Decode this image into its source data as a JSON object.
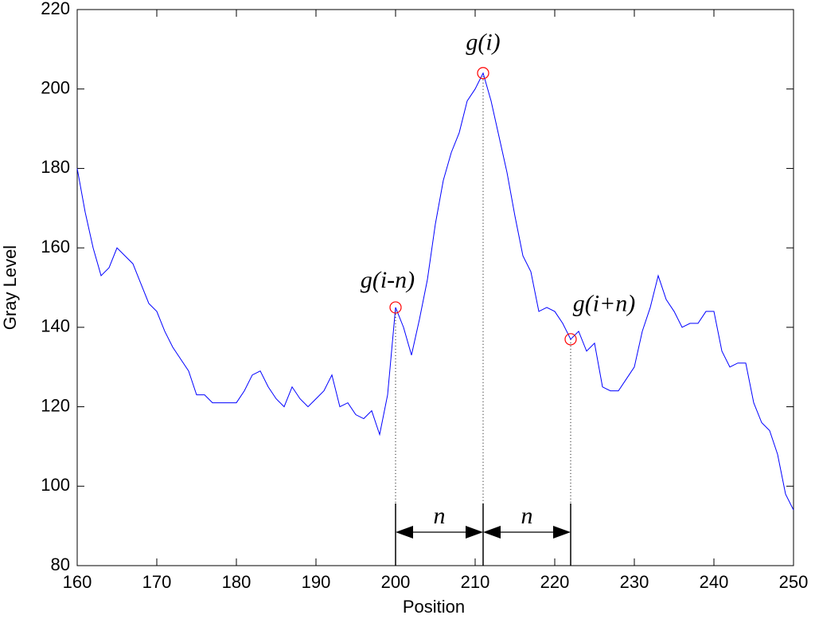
{
  "chart_data": {
    "type": "line",
    "x_label": "Position",
    "y_label": "Gray Level",
    "xlim": [
      160,
      250
    ],
    "xticks": [
      160,
      170,
      180,
      190,
      200,
      210,
      220,
      230,
      240,
      250
    ],
    "ylim": [
      80,
      220
    ],
    "yticks": [
      80,
      100,
      120,
      140,
      160,
      180,
      200,
      220
    ],
    "series": [
      {
        "color": "#0000ff",
        "x": [
          160,
          161,
          162,
          163,
          164,
          165,
          166,
          167,
          168,
          169,
          170,
          171,
          172,
          173,
          174,
          175,
          176,
          177,
          178,
          179,
          180,
          181,
          182,
          183,
          184,
          185,
          186,
          187,
          188,
          189,
          190,
          191,
          192,
          193,
          194,
          195,
          196,
          197,
          198,
          199,
          200,
          201,
          202,
          203,
          204,
          205,
          206,
          207,
          208,
          209,
          210,
          211,
          212,
          213,
          214,
          215,
          216,
          217,
          218,
          219,
          220,
          221,
          222,
          223,
          224,
          225,
          226,
          227,
          228,
          229,
          230,
          231,
          232,
          233,
          234,
          235,
          236,
          237,
          238,
          239,
          240,
          241,
          242,
          243,
          244,
          245,
          246,
          247,
          248,
          249,
          250
        ],
        "values": [
          180,
          169,
          160,
          153,
          155,
          160,
          158,
          156,
          151,
          146,
          144,
          139,
          135,
          132,
          129,
          123,
          123,
          121,
          121,
          121,
          121,
          124,
          128,
          129,
          125,
          122,
          120,
          125,
          122,
          120,
          122,
          124,
          128,
          120,
          121,
          118,
          117,
          119,
          113,
          123,
          145,
          140,
          133,
          142,
          152,
          166,
          177,
          184,
          189,
          197,
          200,
          204,
          197,
          188,
          179,
          168,
          158,
          154,
          144,
          145,
          144,
          141,
          137,
          139,
          134,
          136,
          125,
          124,
          124,
          127,
          130,
          139,
          145,
          153,
          147,
          144,
          140,
          141,
          141,
          144,
          144,
          134,
          130,
          131,
          131,
          121,
          116,
          114,
          108,
          98,
          94
        ]
      }
    ],
    "annotations": [
      {
        "x": 200,
        "y": 145,
        "label": "g(i-n)",
        "color": "#ff0000"
      },
      {
        "x": 211,
        "y": 204,
        "label": "g(i)",
        "color": "#ff0000"
      },
      {
        "x": 222,
        "y": 137,
        "label": "g(i+n)",
        "color": "#ff0000"
      }
    ],
    "spans": [
      {
        "from": 200,
        "to": 211,
        "label": "n"
      },
      {
        "from": 211,
        "to": 222,
        "label": "n"
      }
    ]
  }
}
